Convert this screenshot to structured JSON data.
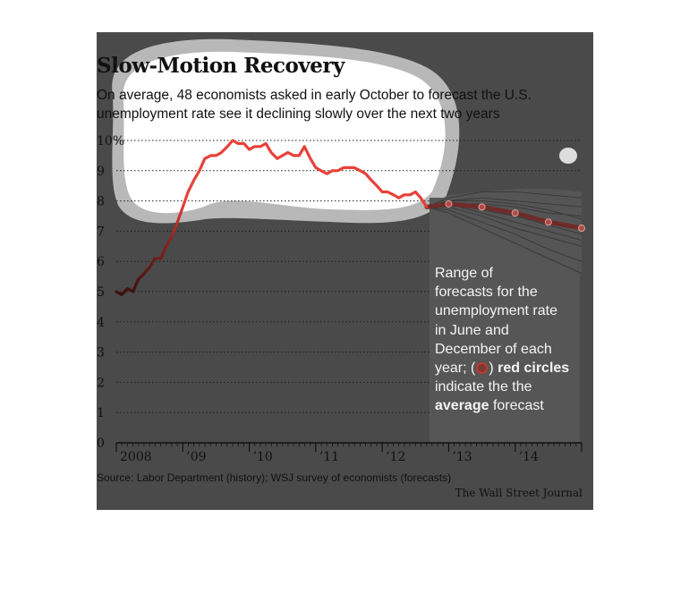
{
  "title": "Slow-Motion Recovery",
  "subtitle_line1": "On average, 48 economists asked in early October to forecast the U.S.",
  "subtitle_line2": "unemployment rate see it declining slowly over the next two years",
  "annotation": {
    "line1": "Range of",
    "line2": "forecasts for the",
    "line3": "unemployment rate",
    "line4": "in June and",
    "line5": "December of each",
    "line6": "year;",
    "bold1": "red circles",
    "line7": "indicate the the",
    "bold2": "average",
    "line8": "forecast"
  },
  "source": "Source: Labor Department (history); WSJ survey of economists (forecasts)",
  "credit": "The Wall Street Journal",
  "colors": {
    "history_line": "#e8413a",
    "forecast_band": "#555555",
    "forecast_lines": "#383838",
    "average_line": "#6e2b28",
    "average_circle": "#b04a44",
    "background": "#4a4a4a",
    "highlight": "#ffffff"
  },
  "chart_data": {
    "type": "line",
    "title": "Slow-Motion Recovery",
    "xlabel": "",
    "ylabel": "",
    "ylim": [
      0,
      10
    ],
    "xlim": [
      2008.0,
      2015.0
    ],
    "y_ticks": [
      "0",
      "1",
      "2",
      "3",
      "4",
      "5",
      "6",
      "7",
      "8",
      "9",
      "10%"
    ],
    "x_ticks": [
      {
        "value": 2008.0,
        "label": "2008"
      },
      {
        "value": 2009.0,
        "label": "’09"
      },
      {
        "value": 2010.0,
        "label": "’10"
      },
      {
        "value": 2011.0,
        "label": "’11"
      },
      {
        "value": 2012.0,
        "label": "’12"
      },
      {
        "value": 2013.0,
        "label": "’13"
      },
      {
        "value": 2014.0,
        "label": "’14"
      }
    ],
    "grid": true,
    "history": {
      "x": [
        2008.0,
        2008.08,
        2008.17,
        2008.25,
        2008.33,
        2008.42,
        2008.5,
        2008.58,
        2008.67,
        2008.75,
        2008.83,
        2008.92,
        2009.0,
        2009.08,
        2009.17,
        2009.25,
        2009.33,
        2009.42,
        2009.5,
        2009.58,
        2009.67,
        2009.75,
        2009.83,
        2009.92,
        2010.0,
        2010.08,
        2010.17,
        2010.25,
        2010.33,
        2010.42,
        2010.5,
        2010.58,
        2010.67,
        2010.75,
        2010.83,
        2010.92,
        2011.0,
        2011.08,
        2011.17,
        2011.25,
        2011.33,
        2011.42,
        2011.5,
        2011.58,
        2011.67,
        2011.75,
        2011.83,
        2011.92,
        2012.0,
        2012.08,
        2012.17,
        2012.25,
        2012.33,
        2012.42,
        2012.5,
        2012.58,
        2012.67
      ],
      "y": [
        5.0,
        4.9,
        5.1,
        5.0,
        5.4,
        5.6,
        5.8,
        6.1,
        6.1,
        6.5,
        6.8,
        7.3,
        7.8,
        8.3,
        8.7,
        9.0,
        9.4,
        9.5,
        9.5,
        9.6,
        9.8,
        10.0,
        9.9,
        9.9,
        9.7,
        9.8,
        9.8,
        9.9,
        9.6,
        9.4,
        9.5,
        9.6,
        9.5,
        9.5,
        9.8,
        9.4,
        9.1,
        9.0,
        8.9,
        9.0,
        9.0,
        9.1,
        9.1,
        9.1,
        9.0,
        8.9,
        8.7,
        8.5,
        8.3,
        8.3,
        8.2,
        8.1,
        8.2,
        8.2,
        8.3,
        8.1,
        7.8
      ]
    },
    "forecast_average": {
      "x": [
        2012.67,
        2013.0,
        2013.5,
        2014.0,
        2014.5,
        2015.0
      ],
      "y": [
        7.8,
        7.9,
        7.8,
        7.6,
        7.3,
        7.1
      ]
    },
    "forecast_range": {
      "x": [
        2012.67,
        2013.0,
        2013.5,
        2014.0,
        2014.5,
        2015.0
      ],
      "high": [
        7.8,
        8.2,
        8.3,
        8.4,
        8.4,
        8.3
      ],
      "low": [
        7.8,
        7.5,
        7.0,
        6.5,
        6.0,
        5.5
      ]
    },
    "forecast_individual": [
      [
        7.8,
        8.1,
        8.3,
        8.3,
        8.2,
        8.1
      ],
      [
        7.8,
        8.0,
        8.1,
        8.0,
        7.9,
        7.8
      ],
      [
        7.8,
        7.9,
        7.9,
        7.8,
        7.6,
        7.5
      ],
      [
        7.8,
        7.9,
        7.7,
        7.5,
        7.2,
        6.9
      ],
      [
        7.8,
        7.8,
        7.5,
        7.1,
        6.8,
        6.5
      ],
      [
        7.8,
        7.7,
        7.3,
        6.9,
        6.4,
        6.0
      ],
      [
        7.8,
        7.6,
        7.1,
        6.6,
        6.1,
        5.6
      ],
      [
        7.8,
        8.0,
        8.0,
        7.9,
        7.7,
        7.4
      ],
      [
        7.8,
        7.9,
        7.6,
        7.3,
        7.0,
        6.7
      ]
    ]
  }
}
